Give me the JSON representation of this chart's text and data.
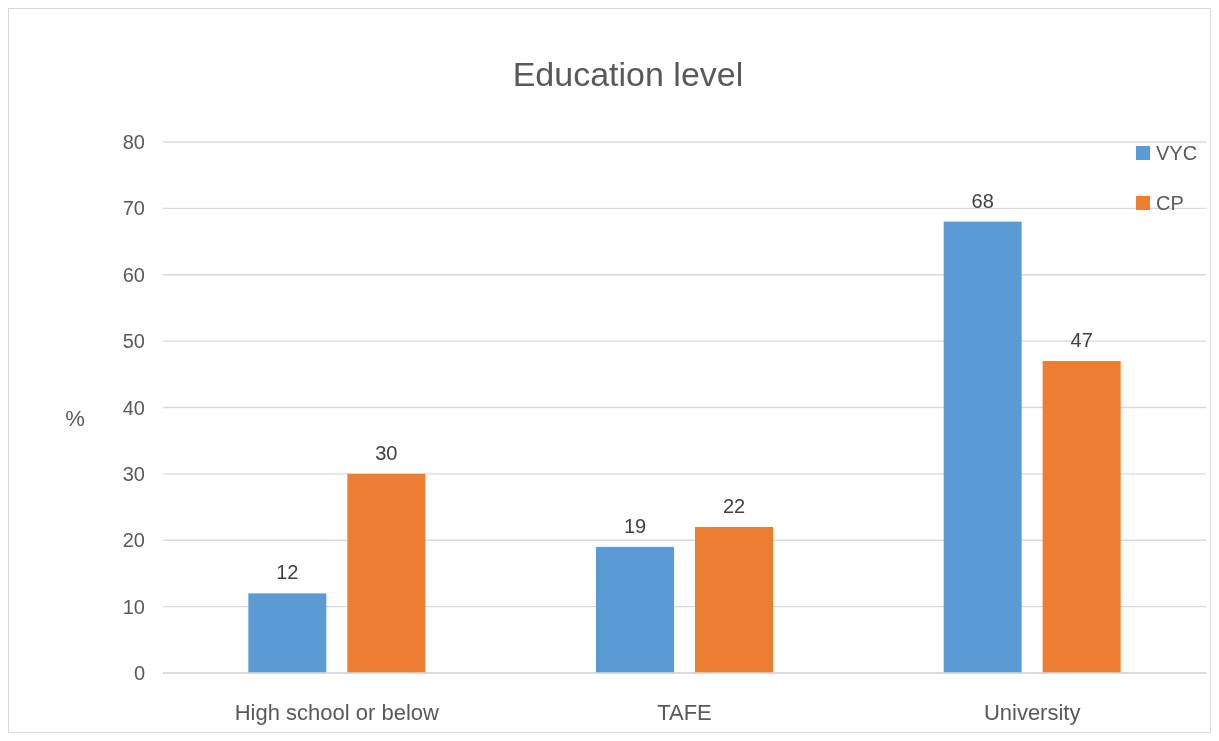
{
  "chart_data": {
    "type": "bar",
    "title": "Education level",
    "ylabel": "%",
    "categories": [
      "High school or below",
      "TAFE",
      "University"
    ],
    "series": [
      {
        "name": "VYC",
        "color": "#5b9bd5",
        "values": [
          12,
          19,
          68
        ]
      },
      {
        "name": "CP",
        "color": "#ed7d31",
        "values": [
          30,
          22,
          47
        ]
      }
    ],
    "ylim": [
      0,
      80
    ],
    "yticks": [
      0,
      10,
      20,
      30,
      40,
      50,
      60,
      70,
      80
    ],
    "grid": "y",
    "legend": "top right",
    "data_labels": true
  }
}
